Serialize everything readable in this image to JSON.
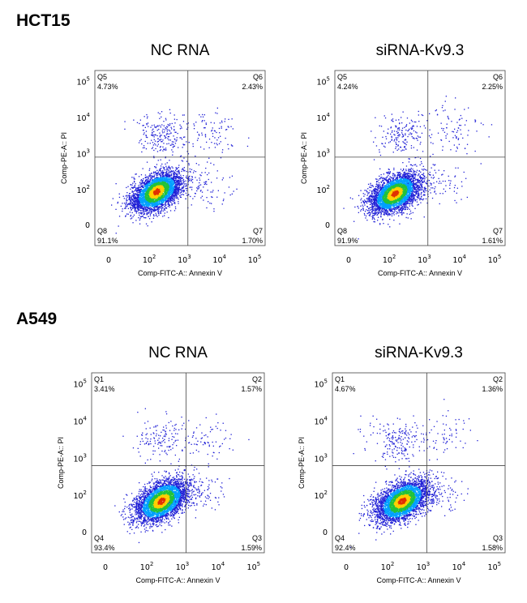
{
  "chart_data": [
    {
      "type": "scatter",
      "group": "HCT15",
      "title": "NC RNA",
      "xlabel": "Comp-FITC-A:: Annexin V",
      "ylabel": "Comp-PE-A:: PI",
      "x_ticks": [
        "0",
        "10",
        "10",
        "10",
        "10"
      ],
      "x_tick_exponents": [
        "",
        "2",
        "3",
        "4",
        "5"
      ],
      "y_ticks": [
        "0",
        "10",
        "10",
        "10",
        "10"
      ],
      "y_tick_exponents": [
        "",
        "2",
        "3",
        "4",
        "5"
      ],
      "quadrants": [
        {
          "name": "Q5",
          "value": "4.73%",
          "position": "upper-left"
        },
        {
          "name": "Q6",
          "value": "2.43%",
          "position": "upper-right"
        },
        {
          "name": "Q7",
          "value": "1.70%",
          "position": "lower-right"
        },
        {
          "name": "Q8",
          "value": "91.1%",
          "position": "lower-left"
        }
      ],
      "gate_log": {
        "x": 3.1,
        "y": 2.9
      },
      "clusters": [
        {
          "role": "main",
          "log_x_center": 2.2,
          "log_y_center": 1.95,
          "spread": 0.32,
          "fraction": 0.91
        },
        {
          "role": "upper-left",
          "log_x_center": 2.3,
          "log_y_center": 3.5,
          "spread": 0.35,
          "fraction": 0.05
        },
        {
          "role": "upper-right",
          "log_x_center": 3.7,
          "log_y_center": 3.6,
          "spread": 0.45,
          "fraction": 0.025
        },
        {
          "role": "lower-right",
          "log_x_center": 3.6,
          "log_y_center": 2.1,
          "spread": 0.4,
          "fraction": 0.017
        }
      ],
      "grid": false
    },
    {
      "type": "scatter",
      "group": "HCT15",
      "title": "siRNA-Kv9.3",
      "xlabel": "Comp-FITC-A:: Annexin V",
      "ylabel": "Comp-PE-A:: PI",
      "x_ticks": [
        "0",
        "10",
        "10",
        "10",
        "10"
      ],
      "x_tick_exponents": [
        "",
        "2",
        "3",
        "4",
        "5"
      ],
      "y_ticks": [
        "0",
        "10",
        "10",
        "10",
        "10"
      ],
      "y_tick_exponents": [
        "",
        "2",
        "3",
        "4",
        "5"
      ],
      "quadrants": [
        {
          "name": "Q5",
          "value": "4.24%",
          "position": "upper-left"
        },
        {
          "name": "Q6",
          "value": "2.25%",
          "position": "upper-right"
        },
        {
          "name": "Q7",
          "value": "1.61%",
          "position": "lower-right"
        },
        {
          "name": "Q8",
          "value": "91.9%",
          "position": "lower-left"
        }
      ],
      "gate_log": {
        "x": 3.1,
        "y": 2.9
      },
      "clusters": [
        {
          "role": "main",
          "log_x_center": 2.15,
          "log_y_center": 1.9,
          "spread": 0.32,
          "fraction": 0.92
        },
        {
          "role": "upper-left",
          "log_x_center": 2.3,
          "log_y_center": 3.5,
          "spread": 0.35,
          "fraction": 0.042
        },
        {
          "role": "upper-right",
          "log_x_center": 3.8,
          "log_y_center": 3.7,
          "spread": 0.45,
          "fraction": 0.022
        },
        {
          "role": "lower-right",
          "log_x_center": 3.6,
          "log_y_center": 2.1,
          "spread": 0.4,
          "fraction": 0.016
        }
      ],
      "grid": false
    },
    {
      "type": "scatter",
      "group": "A549",
      "title": "NC RNA",
      "xlabel": "Comp-FITC-A:: Annexin V",
      "ylabel": "Comp-PE-A:: PI",
      "x_ticks": [
        "0",
        "10",
        "10",
        "10",
        "10"
      ],
      "x_tick_exponents": [
        "",
        "2",
        "3",
        "4",
        "5"
      ],
      "y_ticks": [
        "0",
        "10",
        "10",
        "10",
        "10"
      ],
      "y_tick_exponents": [
        "",
        "2",
        "3",
        "4",
        "5"
      ],
      "quadrants": [
        {
          "name": "Q1",
          "value": "3.41%",
          "position": "upper-left"
        },
        {
          "name": "Q2",
          "value": "1.57%",
          "position": "upper-right"
        },
        {
          "name": "Q3",
          "value": "1.59%",
          "position": "lower-right"
        },
        {
          "name": "Q4",
          "value": "93.4%",
          "position": "lower-left"
        }
      ],
      "gate_log": {
        "x": 3.1,
        "y": 2.8
      },
      "clusters": [
        {
          "role": "main",
          "log_x_center": 2.4,
          "log_y_center": 1.85,
          "spread": 0.33,
          "fraction": 0.93
        },
        {
          "role": "upper-left",
          "log_x_center": 2.4,
          "log_y_center": 3.5,
          "spread": 0.38,
          "fraction": 0.034
        },
        {
          "role": "upper-right",
          "log_x_center": 3.7,
          "log_y_center": 3.6,
          "spread": 0.4,
          "fraction": 0.016
        },
        {
          "role": "lower-right",
          "log_x_center": 3.5,
          "log_y_center": 2.0,
          "spread": 0.35,
          "fraction": 0.016
        }
      ],
      "grid": false
    },
    {
      "type": "scatter",
      "group": "A549",
      "title": "siRNA-Kv9.3",
      "xlabel": "Comp-FITC-A:: Annexin V",
      "ylabel": "Comp-PE-A:: PI",
      "x_ticks": [
        "0",
        "10",
        "10",
        "10",
        "10"
      ],
      "x_tick_exponents": [
        "",
        "2",
        "3",
        "4",
        "5"
      ],
      "y_ticks": [
        "0",
        "10",
        "10",
        "10",
        "10"
      ],
      "y_tick_exponents": [
        "",
        "2",
        "3",
        "4",
        "5"
      ],
      "quadrants": [
        {
          "name": "Q1",
          "value": "4.67%",
          "position": "upper-left"
        },
        {
          "name": "Q2",
          "value": "1.36%",
          "position": "upper-right"
        },
        {
          "name": "Q3",
          "value": "1.58%",
          "position": "lower-right"
        },
        {
          "name": "Q4",
          "value": "92.4%",
          "position": "lower-left"
        }
      ],
      "gate_log": {
        "x": 3.1,
        "y": 2.8
      },
      "clusters": [
        {
          "role": "main",
          "log_x_center": 2.4,
          "log_y_center": 1.85,
          "spread": 0.33,
          "fraction": 0.92
        },
        {
          "role": "upper-left",
          "log_x_center": 2.3,
          "log_y_center": 3.5,
          "spread": 0.38,
          "fraction": 0.047
        },
        {
          "role": "upper-right",
          "log_x_center": 3.7,
          "log_y_center": 3.6,
          "spread": 0.4,
          "fraction": 0.014
        },
        {
          "role": "lower-right",
          "log_x_center": 3.5,
          "log_y_center": 2.0,
          "spread": 0.35,
          "fraction": 0.016
        }
      ],
      "grid": false
    }
  ],
  "row_titles": [
    "HCT15",
    "A549"
  ],
  "colors": {
    "sparse_point": "#1f1fd6",
    "density_low": "#00a0ff",
    "density_mid": "#22c23a",
    "density_high": "#ffd000",
    "density_peak": "#e03000"
  }
}
